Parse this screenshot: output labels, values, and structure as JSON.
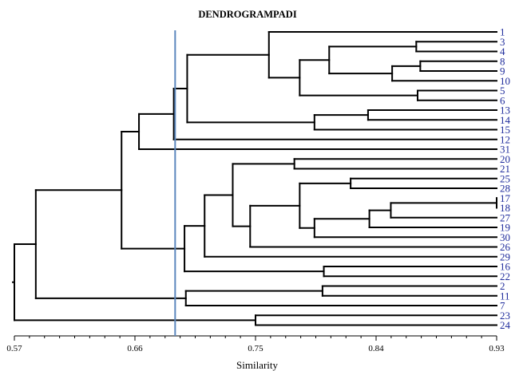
{
  "chart_data": {
    "type": "dendrogram",
    "title": "DENDROGRAMPADI",
    "xlabel": "Similarity",
    "xlim": [
      0.57,
      0.93
    ],
    "x_ticks": [
      "0.57",
      "0.66",
      "0.75",
      "0.84",
      "0.93"
    ],
    "cut_line": {
      "similarity": 0.69,
      "color": "#5b87bd"
    },
    "leaf_color": "#1f2c9c",
    "leaves": [
      "1",
      "3",
      "4",
      "8",
      "9",
      "10",
      "5",
      "6",
      "13",
      "14",
      "15",
      "12",
      "31",
      "20",
      "21",
      "25",
      "28",
      "17",
      "18",
      "27",
      "19",
      "30",
      "26",
      "29",
      "16",
      "22",
      "2",
      "11",
      "7",
      "23",
      "24"
    ],
    "merges": [
      {
        "a": "L8",
        "b": "L9",
        "sim": 0.873,
        "id": "A"
      },
      {
        "a": "L3",
        "b": "L4",
        "sim": 0.87,
        "id": "B"
      },
      {
        "a": "L17",
        "b": "L18",
        "sim": 0.93,
        "id": "C"
      },
      {
        "a": "C",
        "b": "L27",
        "sim": 0.851,
        "id": "D"
      },
      {
        "a": "L5",
        "b": "L6",
        "sim": 0.871,
        "id": "E"
      },
      {
        "a": "A",
        "b": "L10",
        "sim": 0.852,
        "id": "F"
      },
      {
        "a": "L13",
        "b": "L14",
        "sim": 0.834,
        "id": "G"
      },
      {
        "a": "D",
        "b": "L19",
        "sim": 0.835,
        "id": "H"
      },
      {
        "a": "L25",
        "b": "L28",
        "sim": 0.821,
        "id": "I"
      },
      {
        "a": "B",
        "b": "F",
        "sim": 0.805,
        "id": "J"
      },
      {
        "a": "L2",
        "b": "L11",
        "sim": 0.8,
        "id": "K"
      },
      {
        "a": "L16",
        "b": "L22",
        "sim": 0.801,
        "id": "L"
      },
      {
        "a": "G",
        "b": "L15",
        "sim": 0.794,
        "id": "M"
      },
      {
        "a": "H",
        "b": "L30",
        "sim": 0.794,
        "id": "N"
      },
      {
        "a": "I",
        "b": "N",
        "sim": 0.783,
        "id": "O"
      },
      {
        "a": "J",
        "b": "E",
        "sim": 0.783,
        "id": "P"
      },
      {
        "a": "L20",
        "b": "L21",
        "sim": 0.779,
        "id": "Q"
      },
      {
        "a": "L1",
        "b": "P",
        "sim": 0.76,
        "id": "R"
      },
      {
        "a": "L23",
        "b": "L24",
        "sim": 0.75,
        "id": "S"
      },
      {
        "a": "O",
        "b": "L26",
        "sim": 0.746,
        "id": "T"
      },
      {
        "a": "Q",
        "b": "T",
        "sim": 0.733,
        "id": "U"
      },
      {
        "a": "U",
        "b": "L29",
        "sim": 0.712,
        "id": "V"
      },
      {
        "a": "R",
        "b": "M",
        "sim": 0.699,
        "id": "W"
      },
      {
        "a": "K",
        "b": "L7",
        "sim": 0.698,
        "id": "X"
      },
      {
        "a": "V",
        "b": "L",
        "sim": 0.697,
        "id": "Y"
      },
      {
        "a": "W",
        "b": "L12",
        "sim": 0.689,
        "id": "Z"
      },
      {
        "a": "Z",
        "b": "L31",
        "sim": 0.663,
        "id": "AA"
      },
      {
        "a": "AA",
        "b": "Y",
        "sim": 0.65,
        "id": "AB"
      },
      {
        "a": "AB",
        "b": "X",
        "sim": 0.586,
        "id": "AC"
      },
      {
        "a": "AC",
        "b": "S",
        "sim": 0.57,
        "id": "AD"
      }
    ]
  }
}
